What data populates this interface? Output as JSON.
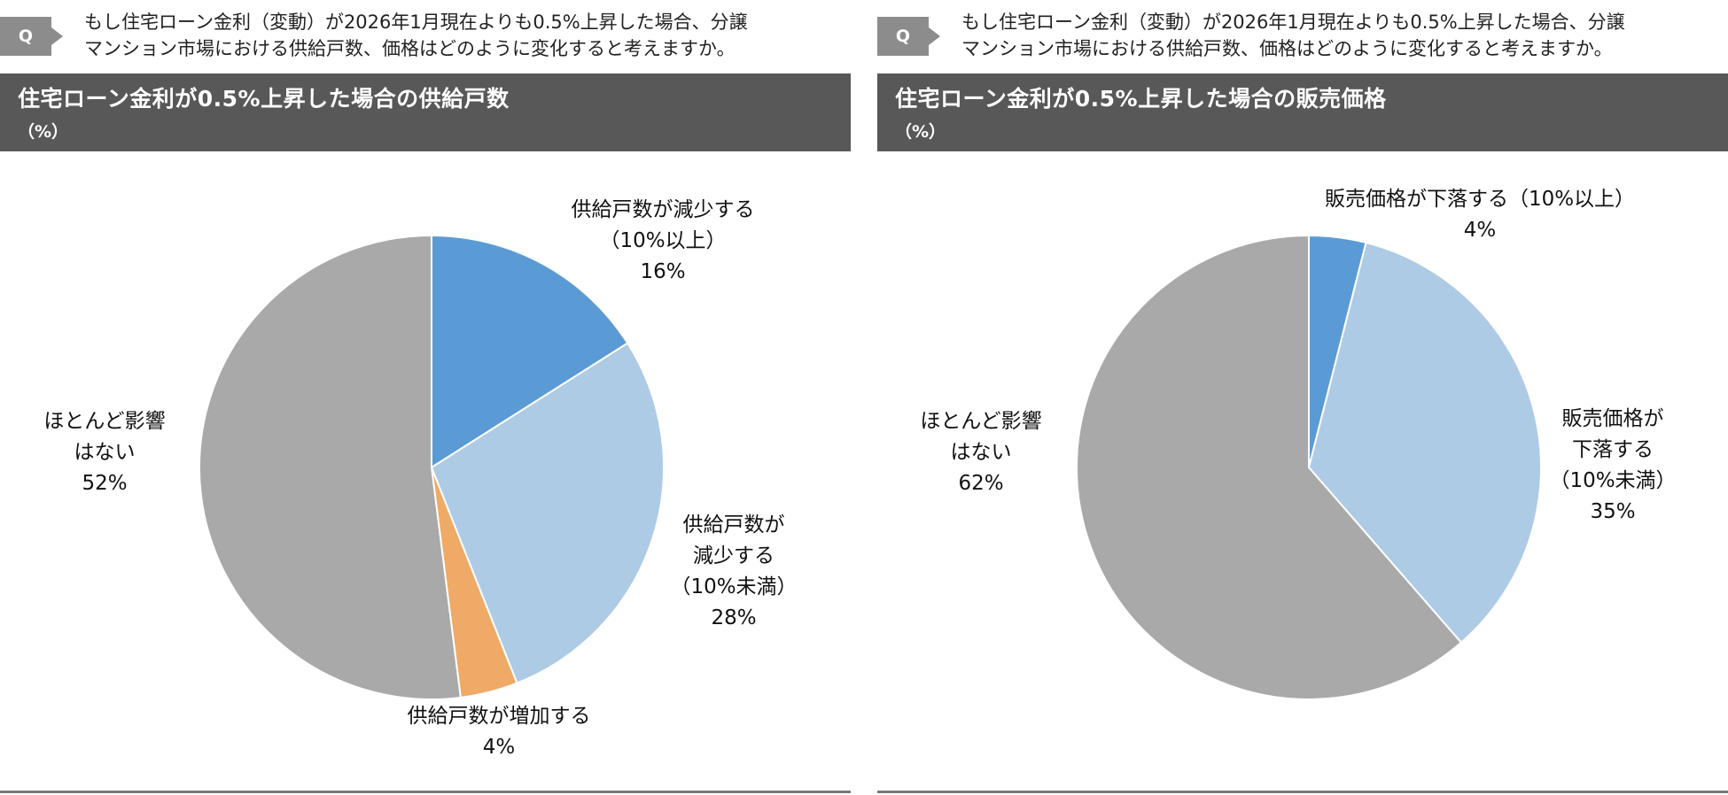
{
  "panels": [
    {
      "badge": "Q",
      "question": "もし住宅ローン金利（変動）が2026年1月現在よりも0.5%上昇した場合、分譲\nマンション市場における供給戸数、価格はどのように変化すると考えますか。",
      "title": "住宅ローン金利が0.5%上昇した場合の供給戸数",
      "unit": "（%）"
    },
    {
      "badge": "Q",
      "question": "もし住宅ローン金利（変動）が2026年1月現在よりも0.5%上昇した場合、分譲\nマンション市場における供給戸数、価格はどのように変化すると考えますか。",
      "title": "住宅ローン金利が0.5%上昇した場合の販売価格",
      "unit": "（%）"
    }
  ],
  "chart_data": [
    {
      "type": "pie",
      "title": "住宅ローン金利が0.5%上昇した場合の供給戸数",
      "unit": "%",
      "start_angle_deg": 0,
      "direction": "clockwise",
      "slices": [
        {
          "label": [
            "供給戸数が減少する",
            "（10%以上）"
          ],
          "value": 16,
          "display": "16%",
          "color": "#5b9bd5"
        },
        {
          "label": [
            "供給戸数が",
            "減少する",
            "（10%未満）"
          ],
          "value": 28,
          "display": "28%",
          "color": "#aecbe5"
        },
        {
          "label": [
            "供給戸数が増加する"
          ],
          "value": 4,
          "display": "4%",
          "color": "#eeaa66"
        },
        {
          "label": [
            "ほとんど影響",
            "はない"
          ],
          "value": 52,
          "display": "52%",
          "color": "#a9a9a9"
        }
      ]
    },
    {
      "type": "pie",
      "title": "住宅ローン金利が0.5%上昇した場合の販売価格",
      "unit": "%",
      "start_angle_deg": 0,
      "direction": "clockwise",
      "slices": [
        {
          "label": [
            "販売価格が下落する（10%以上）"
          ],
          "value": 4,
          "display": "4%",
          "color": "#5b9bd5"
        },
        {
          "label": [
            "販売価格が",
            "下落する",
            "（10%未満）"
          ],
          "value": 35,
          "display": "35%",
          "color": "#aecbe5"
        },
        {
          "label": [
            "ほとんど影響",
            "はない"
          ],
          "value": 62,
          "display": "62%",
          "color": "#a9a9a9"
        }
      ]
    }
  ]
}
